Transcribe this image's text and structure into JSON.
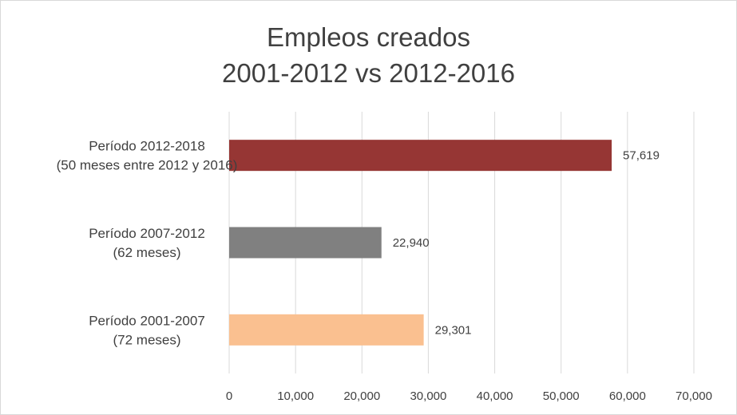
{
  "chart_data": {
    "type": "bar",
    "orientation": "horizontal",
    "title": [
      "Empleos creados",
      "2001-2012 vs 2012-2016"
    ],
    "categories": [
      [
        "Período 2012-2018",
        "(50 meses entre 2012 y 2016)"
      ],
      [
        "Período 2007-2012",
        "(62 meses)"
      ],
      [
        "Período 2001-2007",
        "(72 meses)"
      ]
    ],
    "values": [
      57619,
      22940,
      29301
    ],
    "data_labels": [
      "57,619",
      "22,940",
      "29,301"
    ],
    "colors": [
      "#963634",
      "#808080",
      "#fac090"
    ],
    "xlim": [
      0,
      70000
    ],
    "x_ticks": [
      0,
      10000,
      20000,
      30000,
      40000,
      50000,
      60000,
      70000
    ],
    "x_tick_labels": [
      "0",
      "10,000",
      "20,000",
      "30,000",
      "40,000",
      "50,000",
      "60,000",
      "70,000"
    ],
    "grid": true,
    "legend": "none"
  }
}
